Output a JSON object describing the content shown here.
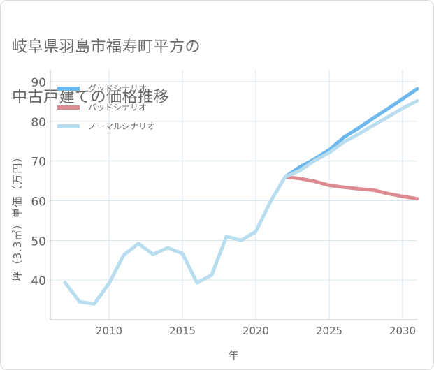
{
  "title_lines": [
    "岐阜県羽島市福寿町平方の",
    "中古戸建ての価格推移"
  ],
  "chart_data": {
    "type": "line",
    "title": "岐阜県羽島市福寿町平方の中古戸建ての価格推移",
    "xlabel": "年",
    "ylabel": "坪（3.3㎡）単価（万円）",
    "xlim": [
      2006,
      2031
    ],
    "ylim": [
      30,
      93
    ],
    "x_ticks": [
      2010,
      2015,
      2020,
      2025,
      2030
    ],
    "y_ticks": [
      40,
      50,
      60,
      70,
      80,
      90
    ],
    "grid": true,
    "legend_position": "top-left",
    "series": [
      {
        "name": "グッドシナリオ",
        "color": "#6cb8ec",
        "x": [
          2022,
          2023,
          2024,
          2025,
          2026,
          2027,
          2028,
          2029,
          2030,
          2031
        ],
        "values": [
          66,
          68.5,
          70.5,
          72.8,
          76,
          78.3,
          80.8,
          83.2,
          85.7,
          88.2
        ]
      },
      {
        "name": "バッドシナリオ",
        "color": "#dd8a90",
        "x": [
          2022,
          2023,
          2024,
          2025,
          2026,
          2027,
          2028,
          2029,
          2030,
          2031
        ],
        "values": [
          66,
          65.6,
          64.9,
          63.9,
          63.4,
          63,
          62.7,
          61.8,
          61.1,
          60.5
        ]
      },
      {
        "name": "ノーマルシナリオ",
        "color": "#b7ddef",
        "x": [
          2007,
          2008,
          2009,
          2010,
          2011,
          2012,
          2013,
          2014,
          2015,
          2016,
          2017,
          2018,
          2019,
          2020,
          2021,
          2022,
          2023,
          2024,
          2025,
          2026,
          2027,
          2028,
          2029,
          2030,
          2031
        ],
        "values": [
          39.4,
          34.5,
          34,
          39.2,
          46.3,
          49.2,
          46.5,
          48.1,
          46.7,
          39.3,
          41.3,
          51,
          50,
          52.2,
          59.8,
          66,
          67.6,
          70.1,
          72.1,
          74.8,
          76.8,
          79,
          81.1,
          83.3,
          85.2
        ]
      }
    ]
  }
}
